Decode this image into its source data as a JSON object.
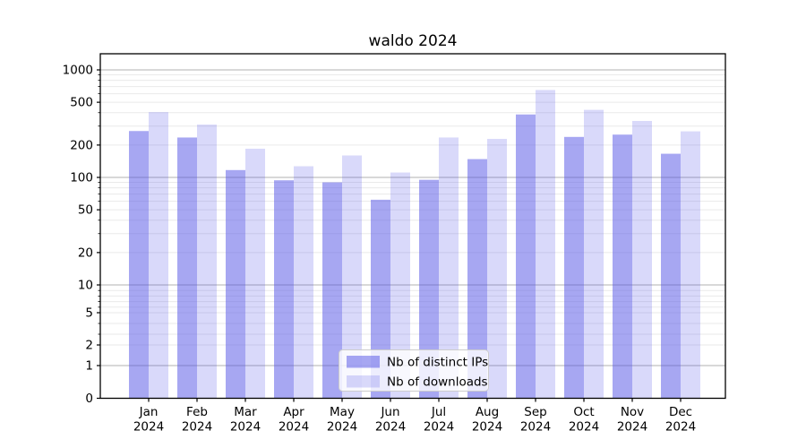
{
  "title": "waldo 2024",
  "chart_data": {
    "type": "bar",
    "title": "waldo 2024",
    "categories": [
      "Jan 2024",
      "Feb 2024",
      "Mar 2024",
      "Apr 2024",
      "May 2024",
      "Jun 2024",
      "Jul 2024",
      "Aug 2024",
      "Sep 2024",
      "Oct 2024",
      "Nov 2024",
      "Dec 2024"
    ],
    "series": [
      {
        "name": "Nb of distinct IPs",
        "values": [
          270,
          235,
          117,
          94,
          90,
          62,
          95,
          148,
          385,
          238,
          250,
          166
        ]
      },
      {
        "name": "Nb of downloads",
        "values": [
          405,
          310,
          185,
          127,
          160,
          111,
          235,
          228,
          650,
          425,
          335,
          268
        ]
      }
    ],
    "xlabel": "",
    "ylabel": "",
    "y_scale": "symlog",
    "y_tick_labels": [
      "0",
      "1",
      "2",
      "5",
      "10",
      "20",
      "50",
      "100",
      "200",
      "500",
      "1000"
    ],
    "y_tick_values": [
      0,
      1,
      2,
      5,
      10,
      20,
      50,
      100,
      200,
      500,
      1000
    ],
    "ylim": [
      0,
      1400
    ],
    "grid": "major-and-minor",
    "legend_position": "lower center"
  },
  "colors": {
    "bar_base": "#5050e6",
    "bar_opacity_ips": 0.5,
    "bar_opacity_downloads": 0.215,
    "grid_major": "#b0b0b0",
    "grid_minor": "#eaeaea",
    "spine": "#000000",
    "legend_border": "#cccccc",
    "legend_bg": "rgba(255,255,255,0.8)"
  },
  "legend": {
    "items": [
      {
        "label": "Nb of distinct IPs",
        "swatch": "dark-purple"
      },
      {
        "label": "Nb of downloads",
        "swatch": "light-purple"
      }
    ]
  }
}
